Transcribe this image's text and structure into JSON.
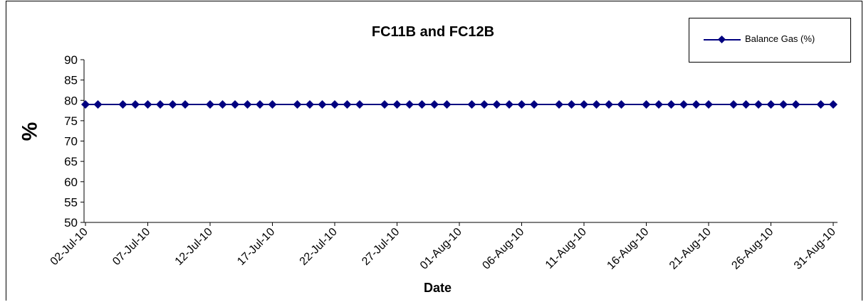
{
  "chart_data": {
    "type": "line",
    "title": "FC11B and FC12B",
    "xlabel": "Date",
    "ylabel": "%",
    "ylim": [
      50,
      90
    ],
    "yticks": [
      "50",
      "55",
      "60",
      "65",
      "70",
      "75",
      "80",
      "85",
      "90"
    ],
    "xlim": [
      "2010-07-02",
      "2010-08-31"
    ],
    "xtick_labels": [
      "02-Jul-10",
      "07-Jul-10",
      "12-Jul-10",
      "17-Jul-10",
      "22-Jul-10",
      "27-Jul-10",
      "01-Aug-10",
      "06-Aug-10",
      "11-Aug-10",
      "16-Aug-10",
      "21-Aug-10",
      "26-Aug-10",
      "31-Aug-10"
    ],
    "grid": false,
    "legend_position": "top-right",
    "series": [
      {
        "name": "Balance Gas (%)",
        "color": "#000080",
        "marker": "diamond",
        "x": [
          "2010-07-02",
          "2010-07-03",
          "2010-07-05",
          "2010-07-06",
          "2010-07-07",
          "2010-07-08",
          "2010-07-09",
          "2010-07-10",
          "2010-07-12",
          "2010-07-13",
          "2010-07-14",
          "2010-07-15",
          "2010-07-16",
          "2010-07-17",
          "2010-07-19",
          "2010-07-20",
          "2010-07-21",
          "2010-07-22",
          "2010-07-23",
          "2010-07-24",
          "2010-07-26",
          "2010-07-27",
          "2010-07-28",
          "2010-07-29",
          "2010-07-30",
          "2010-07-31",
          "2010-08-02",
          "2010-08-03",
          "2010-08-04",
          "2010-08-05",
          "2010-08-06",
          "2010-08-07",
          "2010-08-09",
          "2010-08-10",
          "2010-08-11",
          "2010-08-12",
          "2010-08-13",
          "2010-08-14",
          "2010-08-16",
          "2010-08-17",
          "2010-08-18",
          "2010-08-19",
          "2010-08-20",
          "2010-08-21",
          "2010-08-23",
          "2010-08-24",
          "2010-08-25",
          "2010-08-26",
          "2010-08-27",
          "2010-08-28",
          "2010-08-30",
          "2010-08-31"
        ],
        "y": [
          79,
          79,
          79,
          79,
          79,
          79,
          79,
          79,
          79,
          79,
          79,
          79,
          79,
          79,
          79,
          79,
          79,
          79,
          79,
          79,
          79,
          79,
          79,
          79,
          79,
          79,
          79,
          79,
          79,
          79,
          79,
          79,
          79,
          79,
          79,
          79,
          79,
          79,
          79,
          79,
          79,
          79,
          79,
          79,
          79,
          79,
          79,
          79,
          79,
          79,
          79,
          79
        ]
      }
    ]
  }
}
